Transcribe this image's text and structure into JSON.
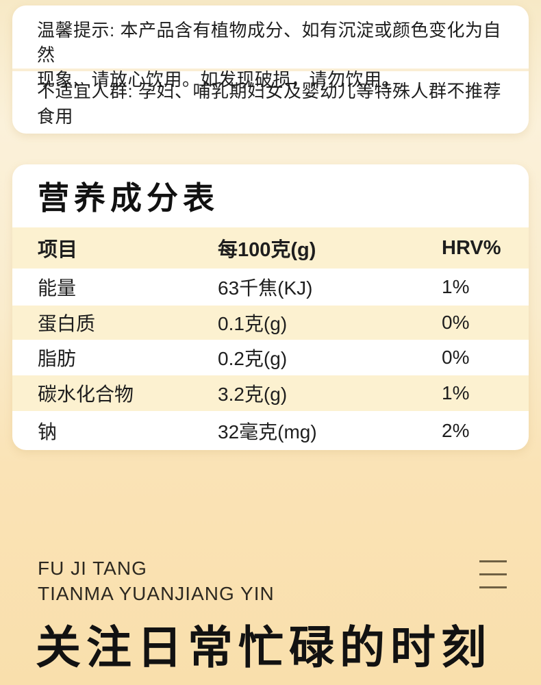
{
  "notices": {
    "warm_tip_line1": "温馨提示: 本产品含有植物成分、如有沉淀或颜色变化为自然",
    "warm_tip_line2": "现象、请放心饮用。如发现破损，请勿饮用。",
    "unsuitable": "不适宜人群: 孕妇、哺乳期妇女及婴幼儿等特殊人群不推荐食用"
  },
  "nutrition": {
    "title": "营养成分表",
    "headers": {
      "item": "项目",
      "per100g": "每100克(g)",
      "hrv": "HRV%"
    },
    "rows": [
      {
        "item": "能量",
        "per100g": "63千焦(KJ)",
        "hrv": "1%"
      },
      {
        "item": "蛋白质",
        "per100g": "0.1克(g)",
        "hrv": "0%"
      },
      {
        "item": "脂肪",
        "per100g": "0.2克(g)",
        "hrv": "0%"
      },
      {
        "item": "碳水化合物",
        "per100g": "3.2克(g)",
        "hrv": "1%"
      },
      {
        "item": "钠",
        "per100g": "32毫克(mg)",
        "hrv": "2%"
      }
    ]
  },
  "footer": {
    "brand_line1": "FU JI TANG",
    "brand_line2": "TIANMA YUANJIANG YIN",
    "heading": "关注日常忙碌的时刻"
  },
  "colors": {
    "card_background": "#ffffff",
    "cream_row": "#fcf1d0",
    "page_gradient_top": "#f7e9c6",
    "page_gradient_bottom": "#f9dfac",
    "text": "#1e1e1e",
    "icon_lines": "#6f6043"
  }
}
